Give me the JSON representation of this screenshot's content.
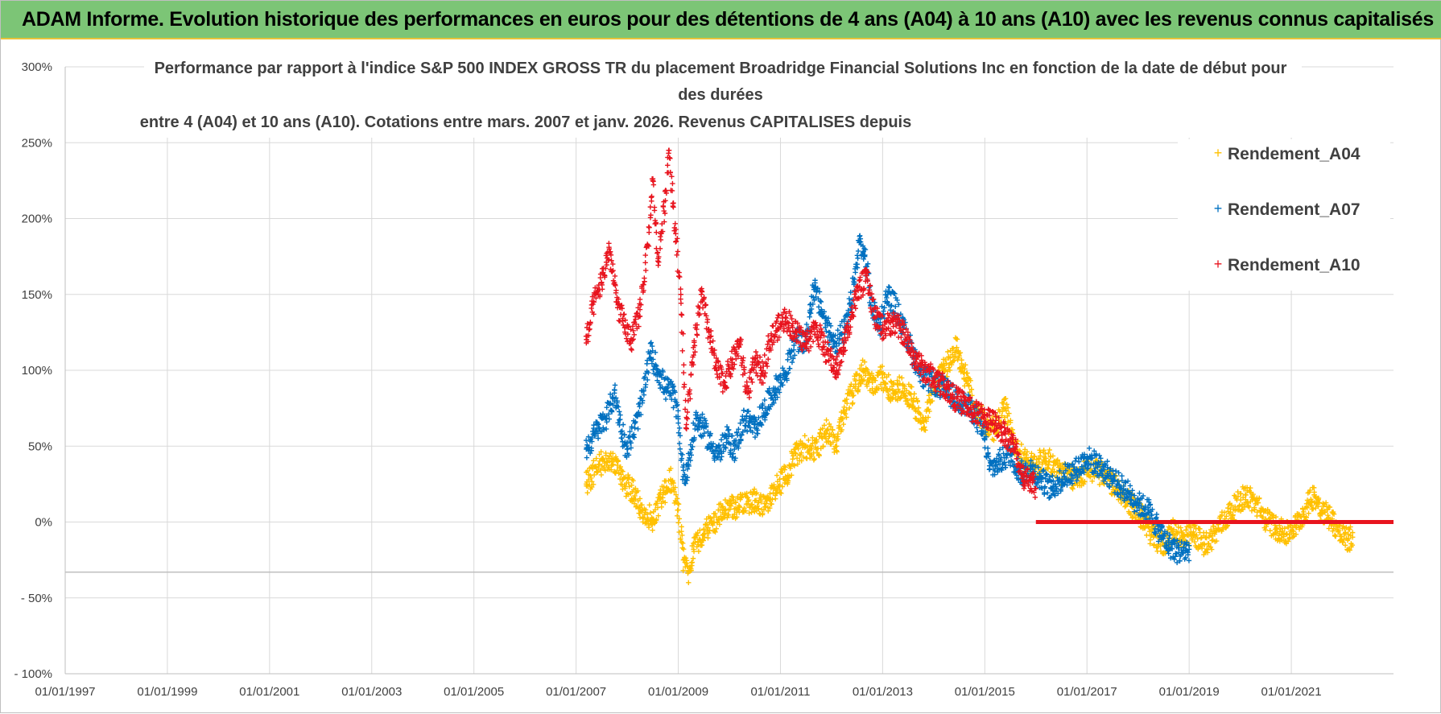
{
  "banner": {
    "title": "ADAM Informe. Evolution historique des performances en euros pour des détentions de 4 ans (A04) à 10 ans (A10) avec les revenus connus capitalisés"
  },
  "chart_data": {
    "type": "scatter",
    "title_lines": [
      "Performance par rapport à l'indice S&P 500 INDEX GROSS TR  du placement Broadridge Financial Solutions Inc en fonction de la date de début pour",
      "des durées",
      "entre 4 (A04) et 10 ans (A10). Cotations entre mars. 2007 et janv. 2026. Revenus CAPITALISES depuis"
    ],
    "x_tick_labels": [
      "01/01/1997",
      "01/01/1999",
      "01/01/2001",
      "01/01/2003",
      "01/01/2005",
      "01/01/2007",
      "01/01/2009",
      "01/01/2011",
      "01/01/2013",
      "01/01/2015",
      "01/01/2017",
      "01/01/2019",
      "01/01/2021"
    ],
    "xlim": [
      1997.0,
      2023.0
    ],
    "y_tick_labels": [
      "300%",
      "250%",
      "200%",
      "150%",
      "100%",
      "50%",
      "0%",
      "- 50%",
      "- 100%"
    ],
    "ylim": [
      -100,
      300
    ],
    "xlabel": "",
    "ylabel": "",
    "grid": true,
    "legend_position": "top-right",
    "series": [
      {
        "name": "Rendement_A04",
        "color": "#ffc000",
        "points": [
          [
            2007.2,
            25
          ],
          [
            2007.45,
            38
          ],
          [
            2007.7,
            42
          ],
          [
            2007.9,
            28
          ],
          [
            2008.1,
            20
          ],
          [
            2008.3,
            8
          ],
          [
            2008.5,
            2
          ],
          [
            2008.7,
            18
          ],
          [
            2008.85,
            28
          ],
          [
            2009.0,
            8
          ],
          [
            2009.1,
            -25
          ],
          [
            2009.2,
            -32
          ],
          [
            2009.3,
            -18
          ],
          [
            2009.5,
            -5
          ],
          [
            2009.7,
            0
          ],
          [
            2009.9,
            8
          ],
          [
            2010.2,
            10
          ],
          [
            2010.5,
            14
          ],
          [
            2010.7,
            10
          ],
          [
            2010.9,
            22
          ],
          [
            2011.1,
            30
          ],
          [
            2011.3,
            45
          ],
          [
            2011.5,
            50
          ],
          [
            2011.7,
            48
          ],
          [
            2011.9,
            60
          ],
          [
            2012.1,
            50
          ],
          [
            2012.2,
            68
          ],
          [
            2012.4,
            85
          ],
          [
            2012.6,
            100
          ],
          [
            2012.8,
            92
          ],
          [
            2013.0,
            95
          ],
          [
            2013.2,
            85
          ],
          [
            2013.4,
            90
          ],
          [
            2013.6,
            80
          ],
          [
            2013.8,
            62
          ],
          [
            2014.0,
            88
          ],
          [
            2014.2,
            100
          ],
          [
            2014.45,
            115
          ],
          [
            2014.6,
            98
          ],
          [
            2014.8,
            78
          ],
          [
            2015.0,
            65
          ],
          [
            2015.2,
            60
          ],
          [
            2015.4,
            75
          ],
          [
            2015.6,
            48
          ],
          [
            2015.8,
            40
          ],
          [
            2016.0,
            38
          ],
          [
            2016.2,
            42
          ],
          [
            2016.5,
            32
          ],
          [
            2016.8,
            28
          ],
          [
            2017.0,
            35
          ],
          [
            2017.3,
            32
          ],
          [
            2017.6,
            22
          ],
          [
            2017.9,
            10
          ],
          [
            2018.1,
            2
          ],
          [
            2018.3,
            -10
          ],
          [
            2018.5,
            -15
          ],
          [
            2018.7,
            -5
          ],
          [
            2018.9,
            -12
          ],
          [
            2019.1,
            -8
          ],
          [
            2019.3,
            -15
          ],
          [
            2019.5,
            -8
          ],
          [
            2019.7,
            2
          ],
          [
            2019.9,
            10
          ],
          [
            2020.1,
            18
          ],
          [
            2020.3,
            12
          ],
          [
            2020.5,
            2
          ],
          [
            2020.7,
            -4
          ],
          [
            2020.9,
            -8
          ],
          [
            2021.1,
            -2
          ],
          [
            2021.3,
            10
          ],
          [
            2021.45,
            18
          ],
          [
            2021.6,
            8
          ],
          [
            2021.8,
            2
          ],
          [
            2021.95,
            -8
          ],
          [
            2022.1,
            -12
          ],
          [
            2022.2,
            -10
          ]
        ]
      },
      {
        "name": "Rendement_A07",
        "color": "#0070c0",
        "points": [
          [
            2007.2,
            48
          ],
          [
            2007.4,
            60
          ],
          [
            2007.6,
            70
          ],
          [
            2007.75,
            85
          ],
          [
            2007.9,
            60
          ],
          [
            2008.0,
            48
          ],
          [
            2008.15,
            62
          ],
          [
            2008.3,
            80
          ],
          [
            2008.45,
            112
          ],
          [
            2008.6,
            100
          ],
          [
            2008.75,
            88
          ],
          [
            2008.9,
            85
          ],
          [
            2009.0,
            68
          ],
          [
            2009.1,
            30
          ],
          [
            2009.2,
            38
          ],
          [
            2009.35,
            68
          ],
          [
            2009.5,
            62
          ],
          [
            2009.65,
            50
          ],
          [
            2009.8,
            45
          ],
          [
            2009.95,
            55
          ],
          [
            2010.1,
            48
          ],
          [
            2010.3,
            68
          ],
          [
            2010.5,
            62
          ],
          [
            2010.7,
            75
          ],
          [
            2010.9,
            88
          ],
          [
            2011.1,
            98
          ],
          [
            2011.3,
            120
          ],
          [
            2011.5,
            118
          ],
          [
            2011.65,
            155
          ],
          [
            2011.8,
            140
          ],
          [
            2011.95,
            125
          ],
          [
            2012.1,
            118
          ],
          [
            2012.3,
            130
          ],
          [
            2012.45,
            160
          ],
          [
            2012.55,
            185
          ],
          [
            2012.65,
            175
          ],
          [
            2012.8,
            140
          ],
          [
            2012.95,
            130
          ],
          [
            2013.1,
            150
          ],
          [
            2013.25,
            142
          ],
          [
            2013.4,
            128
          ],
          [
            2013.6,
            110
          ],
          [
            2013.8,
            95
          ],
          [
            2014.0,
            92
          ],
          [
            2014.2,
            88
          ],
          [
            2014.4,
            82
          ],
          [
            2014.6,
            78
          ],
          [
            2014.8,
            72
          ],
          [
            2015.0,
            55
          ],
          [
            2015.1,
            35
          ],
          [
            2015.3,
            40
          ],
          [
            2015.5,
            45
          ],
          [
            2015.7,
            32
          ],
          [
            2015.9,
            35
          ],
          [
            2016.1,
            28
          ],
          [
            2016.3,
            22
          ],
          [
            2016.55,
            30
          ],
          [
            2016.8,
            35
          ],
          [
            2017.0,
            42
          ],
          [
            2017.2,
            38
          ],
          [
            2017.4,
            32
          ],
          [
            2017.6,
            25
          ],
          [
            2017.8,
            20
          ],
          [
            2018.0,
            12
          ],
          [
            2018.2,
            8
          ],
          [
            2018.4,
            -5
          ],
          [
            2018.6,
            -15
          ],
          [
            2018.8,
            -20
          ],
          [
            2019.0,
            -18
          ]
        ]
      },
      {
        "name": "Rendement_A10",
        "color": "#e8141e",
        "points": [
          [
            2007.2,
            118
          ],
          [
            2007.35,
            145
          ],
          [
            2007.5,
            158
          ],
          [
            2007.65,
            180
          ],
          [
            2007.8,
            145
          ],
          [
            2007.95,
            128
          ],
          [
            2008.1,
            120
          ],
          [
            2008.25,
            140
          ],
          [
            2008.4,
            182
          ],
          [
            2008.5,
            225
          ],
          [
            2008.6,
            172
          ],
          [
            2008.72,
            205
          ],
          [
            2008.82,
            245
          ],
          [
            2008.95,
            190
          ],
          [
            2009.05,
            150
          ],
          [
            2009.15,
            62
          ],
          [
            2009.3,
            110
          ],
          [
            2009.45,
            150
          ],
          [
            2009.6,
            125
          ],
          [
            2009.75,
            100
          ],
          [
            2009.9,
            92
          ],
          [
            2010.05,
            105
          ],
          [
            2010.2,
            118
          ],
          [
            2010.35,
            85
          ],
          [
            2010.5,
            105
          ],
          [
            2010.65,
            98
          ],
          [
            2010.8,
            120
          ],
          [
            2010.95,
            128
          ],
          [
            2011.1,
            135
          ],
          [
            2011.3,
            125
          ],
          [
            2011.5,
            118
          ],
          [
            2011.7,
            128
          ],
          [
            2011.9,
            112
          ],
          [
            2012.1,
            100
          ],
          [
            2012.25,
            118
          ],
          [
            2012.4,
            138
          ],
          [
            2012.55,
            155
          ],
          [
            2012.7,
            160
          ],
          [
            2012.85,
            135
          ],
          [
            2013.0,
            128
          ],
          [
            2013.2,
            132
          ],
          [
            2013.4,
            125
          ],
          [
            2013.6,
            110
          ],
          [
            2013.8,
            100
          ],
          [
            2014.0,
            95
          ],
          [
            2014.2,
            90
          ],
          [
            2014.4,
            82
          ],
          [
            2014.6,
            78
          ],
          [
            2014.8,
            72
          ],
          [
            2015.0,
            70
          ],
          [
            2015.2,
            65
          ],
          [
            2015.4,
            58
          ],
          [
            2015.6,
            48
          ],
          [
            2015.75,
            30
          ],
          [
            2015.9,
            28
          ],
          [
            2016.0,
            22
          ]
        ]
      }
    ],
    "annotations": [
      {
        "label": "A10 zero line",
        "x_start": 2016.0,
        "x_end": 2023.0,
        "y": 0,
        "color": "#e8141e"
      }
    ]
  }
}
